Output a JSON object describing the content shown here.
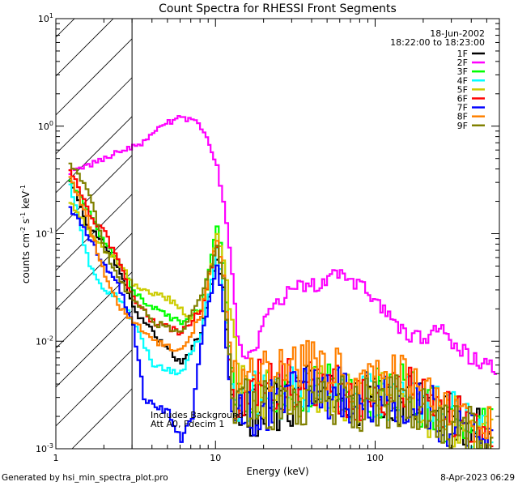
{
  "chart_data": {
    "type": "line",
    "title": "Count Spectra for RHESSI Front Segments",
    "xlabel": "Energy (keV)",
    "ylabel_parts": [
      "counts cm",
      "-2",
      " s",
      "-1",
      " keV",
      "-1"
    ],
    "xscale": "log",
    "yscale": "log",
    "xlim": [
      1,
      600
    ],
    "ylim": [
      0.001,
      10
    ],
    "x_ticks": [
      {
        "v": 1,
        "label": "1"
      },
      {
        "v": 10,
        "label": "10"
      },
      {
        "v": 100,
        "label": "100"
      }
    ],
    "y_ticks": [
      {
        "v": 0.001,
        "base": "10",
        "exp": "-3"
      },
      {
        "v": 0.01,
        "base": "10",
        "exp": "-2"
      },
      {
        "v": 0.1,
        "base": "10",
        "exp": "-1"
      },
      {
        "v": 1,
        "base": "10",
        "exp": "0"
      },
      {
        "v": 10,
        "base": "10",
        "exp": "1"
      }
    ],
    "excluded_region_keV": [
      1,
      3
    ],
    "date": "18-Jun-2002",
    "time_range": "18:22:00 to 18:23:00",
    "annotation_lines": [
      "Includes Background",
      "Att A0, Fdecim 1"
    ],
    "series": [
      {
        "name": "1F",
        "color": "#000000",
        "points": [
          [
            1.2,
            0.33
          ],
          [
            1.6,
            0.11
          ],
          [
            2.0,
            0.08
          ],
          [
            2.5,
            0.045
          ],
          [
            3.0,
            0.02
          ],
          [
            4.0,
            0.012
          ],
          [
            6.0,
            0.006
          ],
          [
            8.0,
            0.012
          ],
          [
            10.0,
            0.06
          ],
          [
            11.0,
            0.03
          ],
          [
            12.5,
            0.002
          ],
          [
            20,
            0.0022
          ],
          [
            40,
            0.0035
          ],
          [
            80,
            0.0028
          ],
          [
            150,
            0.003
          ],
          [
            250,
            0.0022
          ],
          [
            400,
            0.0015
          ],
          [
            550,
            0.0011
          ]
        ]
      },
      {
        "name": "2F",
        "color": "#ff00ff",
        "points": [
          [
            1.2,
            0.38
          ],
          [
            1.5,
            0.43
          ],
          [
            2.0,
            0.5
          ],
          [
            2.5,
            0.58
          ],
          [
            3.0,
            0.66
          ],
          [
            3.5,
            0.72
          ],
          [
            4.0,
            0.85
          ],
          [
            5.0,
            1.1
          ],
          [
            6.0,
            1.22
          ],
          [
            7.0,
            1.15
          ],
          [
            8.0,
            0.95
          ],
          [
            9.0,
            0.7
          ],
          [
            10.0,
            0.42
          ],
          [
            11.0,
            0.2
          ],
          [
            12.0,
            0.07
          ],
          [
            13.0,
            0.02
          ],
          [
            14.0,
            0.0085
          ],
          [
            16.0,
            0.007
          ],
          [
            18.0,
            0.01
          ],
          [
            20.0,
            0.017
          ],
          [
            23.0,
            0.022
          ],
          [
            26.0,
            0.026
          ],
          [
            30.0,
            0.03
          ],
          [
            40.0,
            0.033
          ],
          [
            50.0,
            0.038
          ],
          [
            60.0,
            0.04
          ],
          [
            70.0,
            0.038
          ],
          [
            80.0,
            0.032
          ],
          [
            90.0,
            0.027
          ],
          [
            100.0,
            0.022
          ],
          [
            120.0,
            0.016
          ],
          [
            150.0,
            0.012
          ],
          [
            200.0,
            0.01
          ],
          [
            250.0,
            0.013
          ],
          [
            300.0,
            0.009
          ],
          [
            400.0,
            0.007
          ],
          [
            500.0,
            0.006
          ],
          [
            580.0,
            0.005
          ]
        ]
      },
      {
        "name": "3F",
        "color": "#00ff00",
        "points": [
          [
            1.2,
            0.33
          ],
          [
            1.6,
            0.16
          ],
          [
            2.0,
            0.08
          ],
          [
            2.5,
            0.05
          ],
          [
            3.0,
            0.03
          ],
          [
            4.0,
            0.02
          ],
          [
            6.0,
            0.015
          ],
          [
            8.0,
            0.02
          ],
          [
            10.0,
            0.12
          ],
          [
            11.0,
            0.05
          ],
          [
            12.5,
            0.004
          ],
          [
            20,
            0.003
          ],
          [
            40,
            0.004
          ],
          [
            80,
            0.003
          ],
          [
            150,
            0.0035
          ],
          [
            250,
            0.002
          ],
          [
            400,
            0.0015
          ],
          [
            550,
            0.0013
          ]
        ]
      },
      {
        "name": "4F",
        "color": "#00ffff",
        "points": [
          [
            1.2,
            0.3
          ],
          [
            1.6,
            0.05
          ],
          [
            2.0,
            0.03
          ],
          [
            2.5,
            0.025
          ],
          [
            3.0,
            0.015
          ],
          [
            4.0,
            0.006
          ],
          [
            6.0,
            0.005
          ],
          [
            8.0,
            0.012
          ],
          [
            10.0,
            0.07
          ],
          [
            11.0,
            0.03
          ],
          [
            12.5,
            0.003
          ],
          [
            20,
            0.003
          ],
          [
            40,
            0.0035
          ],
          [
            80,
            0.003
          ],
          [
            150,
            0.003
          ],
          [
            250,
            0.0025
          ],
          [
            400,
            0.0016
          ],
          [
            550,
            0.0012
          ]
        ]
      },
      {
        "name": "5F",
        "color": "#cccc00",
        "points": [
          [
            1.2,
            0.2
          ],
          [
            1.5,
            0.12
          ],
          [
            2.0,
            0.07
          ],
          [
            2.5,
            0.05
          ],
          [
            3.0,
            0.035
          ],
          [
            3.5,
            0.03
          ],
          [
            4.0,
            0.028
          ],
          [
            5.0,
            0.025
          ],
          [
            6.0,
            0.02
          ],
          [
            7.0,
            0.016
          ],
          [
            8.0,
            0.02
          ],
          [
            9.0,
            0.04
          ],
          [
            10.0,
            0.1
          ],
          [
            11.0,
            0.06
          ],
          [
            12.0,
            0.02
          ],
          [
            13.0,
            0.008
          ],
          [
            14.0,
            0.004
          ],
          [
            20,
            0.003
          ],
          [
            40,
            0.0035
          ],
          [
            80,
            0.003
          ],
          [
            150,
            0.003
          ],
          [
            250,
            0.002
          ],
          [
            400,
            0.0015
          ],
          [
            550,
            0.0012
          ]
        ]
      },
      {
        "name": "6F",
        "color": "#ff0000",
        "points": [
          [
            1.2,
            0.4
          ],
          [
            1.6,
            0.15
          ],
          [
            2.0,
            0.1
          ],
          [
            2.5,
            0.05
          ],
          [
            3.0,
            0.025
          ],
          [
            4.0,
            0.015
          ],
          [
            6.0,
            0.012
          ],
          [
            8.0,
            0.02
          ],
          [
            10.0,
            0.08
          ],
          [
            11.0,
            0.04
          ],
          [
            12.5,
            0.003
          ],
          [
            20,
            0.004
          ],
          [
            40,
            0.004
          ],
          [
            80,
            0.003
          ],
          [
            150,
            0.0035
          ],
          [
            250,
            0.0022
          ],
          [
            400,
            0.0016
          ],
          [
            550,
            0.0013
          ]
        ]
      },
      {
        "name": "7F",
        "color": "#0000ff",
        "points": [
          [
            1.2,
            0.18
          ],
          [
            1.6,
            0.09
          ],
          [
            2.0,
            0.05
          ],
          [
            2.5,
            0.03
          ],
          [
            3.0,
            0.014
          ],
          [
            3.5,
            0.003
          ],
          [
            4.0,
            0.0025
          ],
          [
            5.0,
            0.0022
          ],
          [
            6.0,
            0.0012
          ],
          [
            7.0,
            0.002
          ],
          [
            8.0,
            0.01
          ],
          [
            10.0,
            0.05
          ],
          [
            11.0,
            0.02
          ],
          [
            12.5,
            0.002
          ],
          [
            20,
            0.0025
          ],
          [
            40,
            0.0035
          ],
          [
            80,
            0.003
          ],
          [
            150,
            0.003
          ],
          [
            250,
            0.002
          ],
          [
            400,
            0.0015
          ],
          [
            550,
            0.0011
          ]
        ]
      },
      {
        "name": "8F",
        "color": "#ff8000",
        "points": [
          [
            1.2,
            0.34
          ],
          [
            1.6,
            0.12
          ],
          [
            2.0,
            0.04
          ],
          [
            2.5,
            0.02
          ],
          [
            3.0,
            0.015
          ],
          [
            4.0,
            0.01
          ],
          [
            6.0,
            0.008
          ],
          [
            8.0,
            0.018
          ],
          [
            10.0,
            0.09
          ],
          [
            11.0,
            0.04
          ],
          [
            12.5,
            0.005
          ],
          [
            20,
            0.006
          ],
          [
            40,
            0.006
          ],
          [
            80,
            0.004
          ],
          [
            150,
            0.0045
          ],
          [
            250,
            0.003
          ],
          [
            400,
            0.002
          ],
          [
            550,
            0.0014
          ]
        ]
      },
      {
        "name": "9F",
        "color": "#808000",
        "points": [
          [
            1.2,
            0.45
          ],
          [
            1.6,
            0.24
          ],
          [
            2.0,
            0.07
          ],
          [
            2.5,
            0.035
          ],
          [
            3.0,
            0.025
          ],
          [
            4.0,
            0.015
          ],
          [
            6.0,
            0.012
          ],
          [
            8.0,
            0.025
          ],
          [
            10.0,
            0.075
          ],
          [
            11.0,
            0.04
          ],
          [
            12.5,
            0.003
          ],
          [
            20,
            0.0025
          ],
          [
            40,
            0.003
          ],
          [
            80,
            0.0026
          ],
          [
            150,
            0.0028
          ],
          [
            250,
            0.002
          ],
          [
            400,
            0.0014
          ],
          [
            550,
            0.0011
          ]
        ]
      }
    ]
  },
  "footer": {
    "generated_by": "Generated by hsi_min_spectra_plot.pro",
    "date_time": "8-Apr-2023 06:29"
  }
}
